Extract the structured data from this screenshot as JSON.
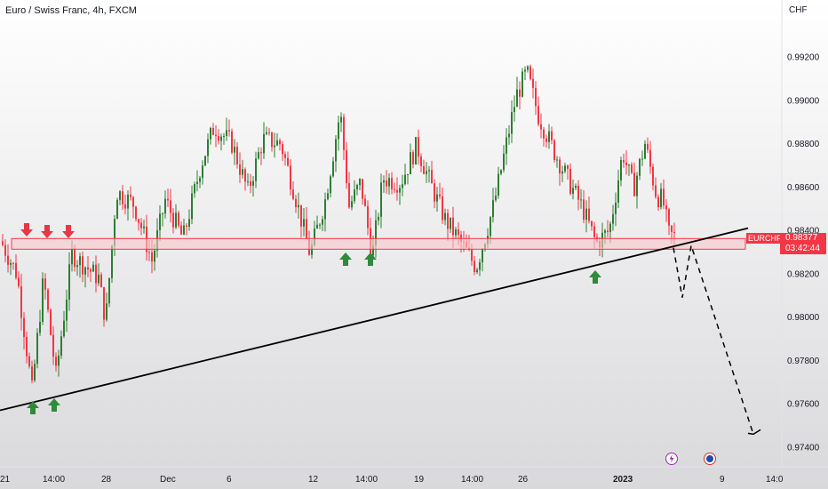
{
  "header": {
    "title": "Euro / Swiss Franc, 4h, FXCM",
    "currency": "CHF"
  },
  "price_tag": {
    "symbol": "EURCHF",
    "price": "0.98377",
    "countdown": "03:42:44"
  },
  "chart_data": {
    "type": "candlestick",
    "title": "Euro / Swiss Franc, 4h, FXCM",
    "ylim": [
      0.9735,
      0.9935
    ],
    "y_ticks": [
      "0.99200",
      "0.99000",
      "0.98800",
      "0.98600",
      "0.98400",
      "0.98200",
      "0.98000",
      "0.97800",
      "0.97600",
      "0.97400"
    ],
    "y_tick_values": [
      0.992,
      0.99,
      0.988,
      0.986,
      0.984,
      0.982,
      0.98,
      0.978,
      0.976,
      0.974
    ],
    "x_ticks": [
      {
        "label": "21",
        "bold": false
      },
      {
        "label": "14:00",
        "bold": false
      },
      {
        "label": "28",
        "bold": false
      },
      {
        "label": "Dec",
        "bold": false
      },
      {
        "label": "6",
        "bold": false
      },
      {
        "label": "12",
        "bold": false
      },
      {
        "label": "14:00",
        "bold": false
      },
      {
        "label": "19",
        "bold": false
      },
      {
        "label": "14:00",
        "bold": false
      },
      {
        "label": "26",
        "bold": false
      },
      {
        "label": "2023",
        "bold": true
      },
      {
        "label": "9",
        "bold": false
      },
      {
        "label": "14:0",
        "bold": false
      }
    ],
    "support_zone": {
      "low": 0.9832,
      "high": 0.9835
    },
    "trendline": {
      "start": 0.9757,
      "end": 0.9841
    },
    "projection_path": [
      0.9832,
      0.9809,
      0.9833,
      0.9746
    ],
    "colors": {
      "up": "#2e7d32",
      "down": "#f23645",
      "zone_fill": "#f8c8cc",
      "zone_stroke": "#f23645",
      "trend": "#000000",
      "arrow_up": "#2e8b3a",
      "arrow_down": "#e53945"
    },
    "last_price": 0.98377
  }
}
